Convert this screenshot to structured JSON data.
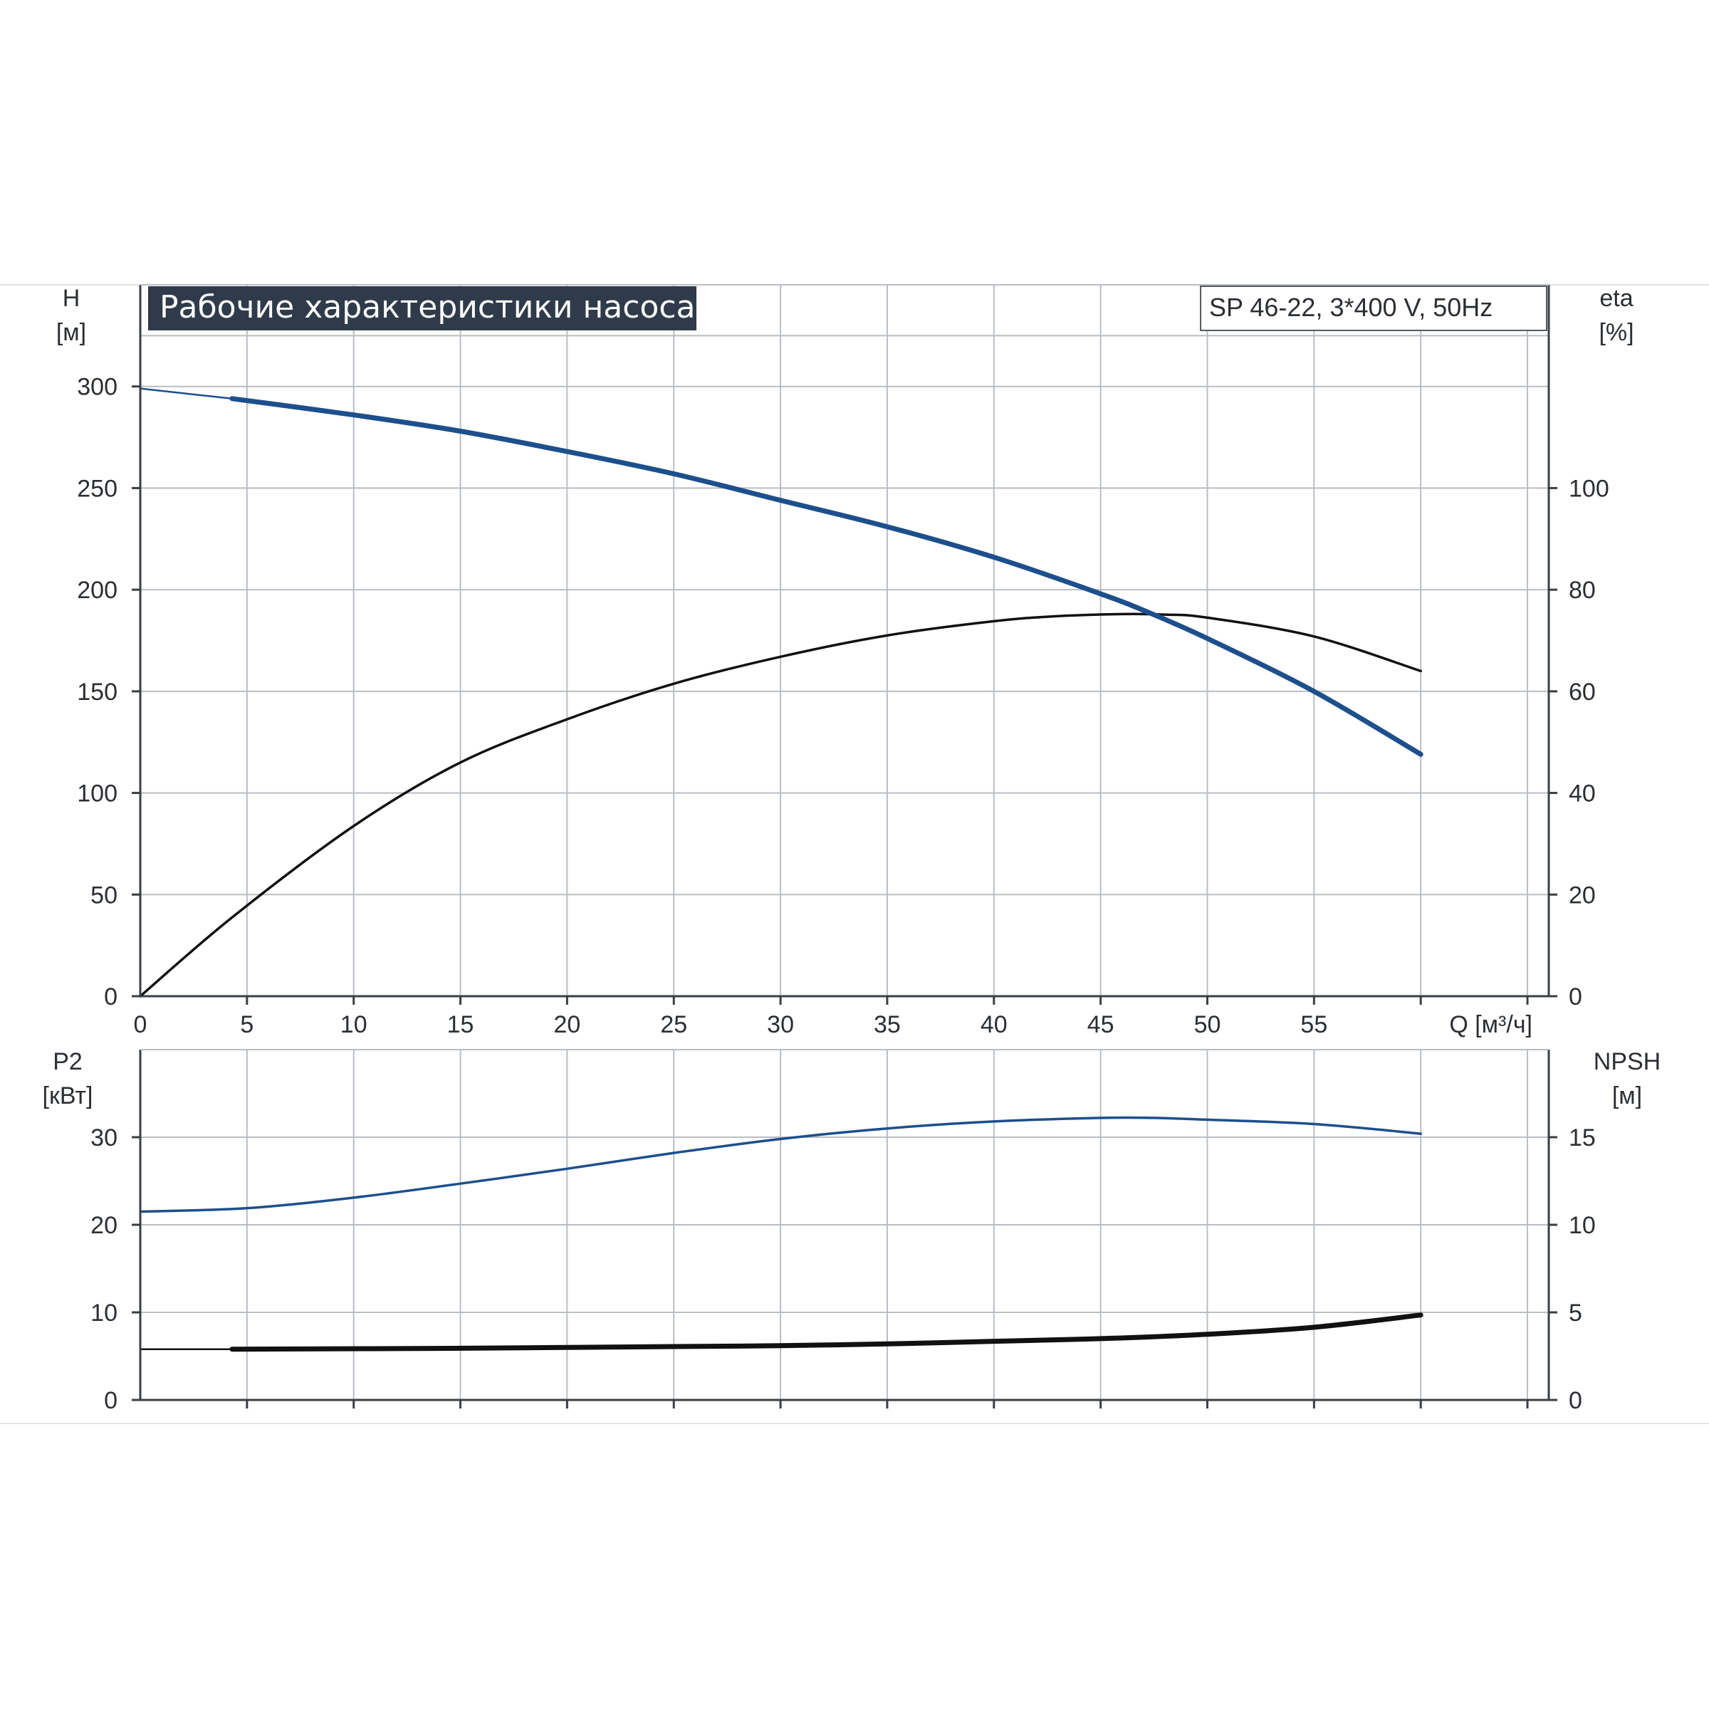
{
  "chart_data": {
    "type": "line",
    "title": "Рабочие характеристики насоса",
    "model": "SP 46-22, 3*400 V, 50Hz",
    "colors": {
      "blue": "#1d4f8c",
      "black": "#111111"
    },
    "x_axis": {
      "label": "Q [м³/ч]",
      "min": 0,
      "max": 66,
      "ticks": [
        0,
        5,
        10,
        15,
        20,
        25,
        30,
        35,
        40,
        45,
        50,
        55
      ],
      "gridlines": [
        5,
        10,
        15,
        20,
        25,
        30,
        35,
        40,
        45,
        50,
        55,
        60,
        65
      ]
    },
    "top_panel": {
      "left_axis": {
        "label_line1": "H",
        "label_line2": "[м]",
        "min": 0,
        "max": 350,
        "ticks": [
          0,
          50,
          100,
          150,
          200,
          250,
          300
        ]
      },
      "right_axis": {
        "label_line1": "eta",
        "label_line2": "[%]",
        "min": 0,
        "max": 140,
        "ticks": [
          0,
          20,
          40,
          60,
          80,
          100
        ]
      },
      "series": [
        {
          "axis": "left",
          "color": "blue",
          "style": "thick",
          "points": [
            [
              0,
              299
            ],
            [
              4.3,
              294
            ],
            [
              10,
              286
            ],
            [
              15,
              278
            ],
            [
              20,
              268
            ],
            [
              25,
              257
            ],
            [
              30,
              244
            ],
            [
              35,
              231
            ],
            [
              40,
              216
            ],
            [
              45,
              198
            ],
            [
              47.2,
              189
            ],
            [
              50,
              176
            ],
            [
              55,
              150
            ],
            [
              60,
              119
            ]
          ]
        },
        {
          "axis": "right",
          "color": "black",
          "style": "normal",
          "points": [
            [
              0,
              0
            ],
            [
              4.3,
              15.5
            ],
            [
              10,
              33.5
            ],
            [
              15,
              46
            ],
            [
              20,
              54.5
            ],
            [
              25,
              61.5
            ],
            [
              30,
              66.8
            ],
            [
              35,
              71
            ],
            [
              40,
              73.8
            ],
            [
              43,
              74.8
            ],
            [
              46,
              75.2
            ],
            [
              48,
              75.1
            ],
            [
              50,
              74.5
            ],
            [
              55,
              70.8
            ],
            [
              60,
              64
            ]
          ]
        }
      ]
    },
    "bottom_panel": {
      "left_axis": {
        "label_line1": "P2",
        "label_line2": "[кВт]",
        "min": 0,
        "max": 40,
        "ticks": [
          0,
          10,
          20,
          30
        ]
      },
      "right_axis": {
        "label_line1": "NPSH",
        "label_line2": "[м]",
        "min": 0,
        "max": 20,
        "ticks": [
          0,
          5,
          10,
          15
        ]
      },
      "series": [
        {
          "axis": "left",
          "color": "blue",
          "style": "normal",
          "points": [
            [
              0,
              21.5
            ],
            [
              5,
              21.9
            ],
            [
              10,
              23.1
            ],
            [
              15,
              24.7
            ],
            [
              20,
              26.4
            ],
            [
              25,
              28.2
            ],
            [
              30,
              29.8
            ],
            [
              35,
              31.0
            ],
            [
              40,
              31.8
            ],
            [
              45,
              32.2
            ],
            [
              47.5,
              32.2
            ],
            [
              50,
              32.0
            ],
            [
              55,
              31.5
            ],
            [
              60,
              30.4
            ]
          ]
        },
        {
          "axis": "right",
          "color": "black",
          "style": "thick",
          "points": [
            [
              0,
              2.9
            ],
            [
              4.3,
              2.9
            ],
            [
              15,
              2.95
            ],
            [
              25,
              3.05
            ],
            [
              30,
              3.1
            ],
            [
              35,
              3.2
            ],
            [
              40,
              3.35
            ],
            [
              45,
              3.5
            ],
            [
              50,
              3.75
            ],
            [
              55,
              4.15
            ],
            [
              60,
              4.85
            ]
          ]
        }
      ]
    }
  }
}
